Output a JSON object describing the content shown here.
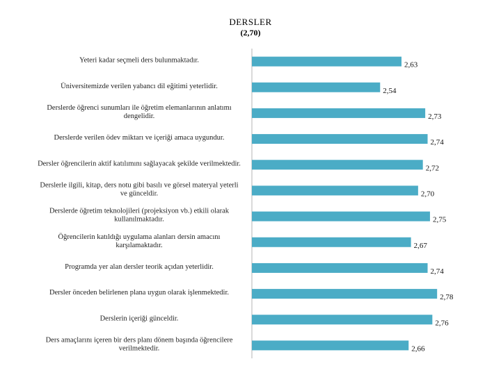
{
  "chart_data": {
    "type": "bar",
    "orientation": "horizontal",
    "title": "DERSLER",
    "subtitle": "(2,70)",
    "categories": [
      [
        "Yeteri kadar seçmeli ders bulunmaktadır."
      ],
      [
        "Üniversitemizde verilen yabancı dil eğitimi yeterlidir."
      ],
      [
        "Derslerde öğrenci sunumları ile öğretim elemanlarının anlatımı",
        "dengelidir."
      ],
      [
        "Derslerde verilen ödev miktarı ve içeriği amaca uygundur."
      ],
      [
        "Dersler öğrencilerin aktif katılımını sağlayacak şekilde verilmektedir."
      ],
      [
        "Derslerle ilgili, kitap, ders notu gibi basılı ve görsel materyal yeterli",
        "ve günceldir."
      ],
      [
        "Derslerde öğretim teknolojileri (projeksiyon vb.) etkili olarak",
        "kullanılmaktadır."
      ],
      [
        "Öğrencilerin katıldığı uygulama alanları dersin amacını",
        "karşılamaktadır."
      ],
      [
        "Programda yer alan dersler teorik açıdan yeterlidir."
      ],
      [
        "Dersler önceden belirlenen plana uygun olarak işlenmektedir."
      ],
      [
        "Derslerin içeriği günceldir."
      ],
      [
        "Ders amaçlarını içeren bir ders planı dönem başında öğrencilere",
        "verilmektedir."
      ]
    ],
    "values": [
      2.63,
      2.54,
      2.73,
      2.74,
      2.72,
      2.7,
      2.75,
      2.67,
      2.74,
      2.78,
      2.76,
      2.66
    ],
    "value_labels": [
      "2,63",
      "2,54",
      "2,73",
      "2,74",
      "2,72",
      "2,70",
      "2,75",
      "2,67",
      "2,74",
      "2,78",
      "2,76",
      "2,66"
    ],
    "xlim": [
      2.0,
      2.8
    ],
    "grid": false,
    "legend": "none",
    "bar_color": "#4bacc6",
    "axis_color": "#b3b3b3"
  }
}
